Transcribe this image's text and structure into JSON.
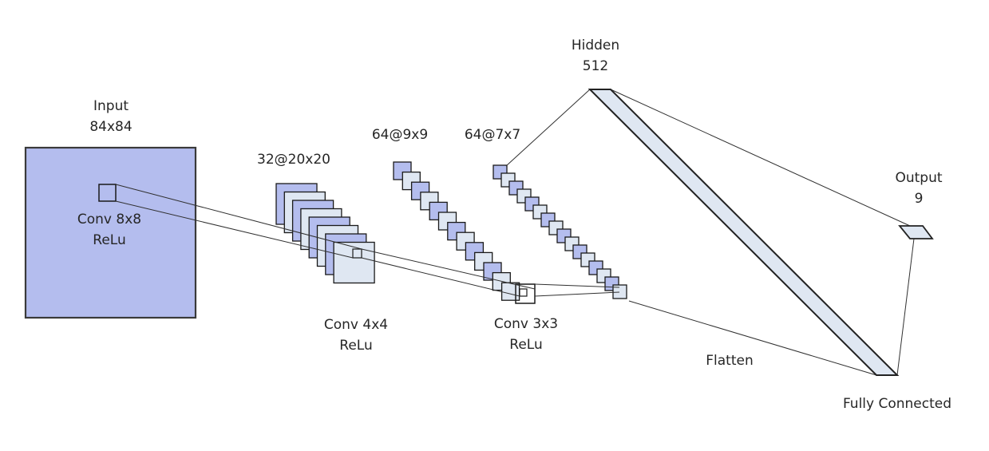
{
  "labels": {
    "input_title": "Input",
    "input_size": "84x84",
    "conv1_op": "Conv 8x8",
    "conv1_act": "ReLu",
    "layer1_shape": "32@20x20",
    "conv2_op": "Conv 4x4",
    "conv2_act": "ReLu",
    "layer2_shape": "64@9x9",
    "layer3_shape": "64@7x7",
    "conv3_op": "Conv 3x3",
    "conv3_act": "ReLu",
    "hidden_title": "Hidden",
    "hidden_size": "512",
    "flatten": "Flatten",
    "output_title": "Output",
    "output_size": "9",
    "fully_connected": "Fully Connected"
  },
  "colors": {
    "fill_blue": "#b4bdee",
    "fill_light": "#dfe7f2",
    "stroke": "#1a1a1a"
  }
}
